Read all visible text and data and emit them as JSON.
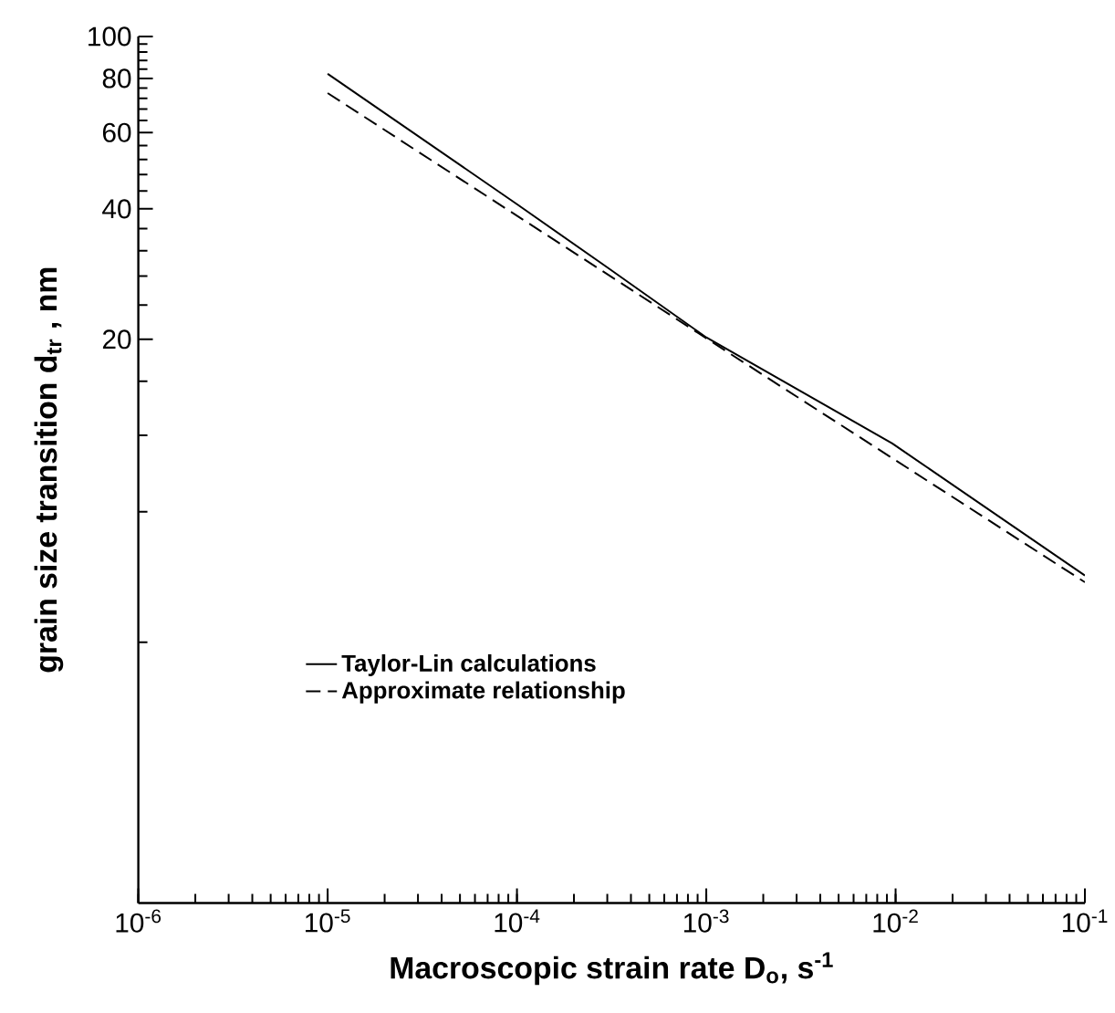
{
  "chart_data": {
    "type": "line",
    "xlabel": "Macroscopic strain rate D$_{o}$, s$^{-1}$",
    "ylabel": "grain size transition d$_{tr}$ , nm",
    "log": "xy",
    "xlim": [
      1e-06,
      0.1
    ],
    "ylim": [
      1,
      100
    ],
    "xticks": [
      {
        "value": 1e-06,
        "label": "10$^{-6}$"
      },
      {
        "value": 1e-05,
        "label": "10$^{-5}$"
      },
      {
        "value": 0.0001,
        "label": "10$^{-4}$"
      },
      {
        "value": 0.001,
        "label": "10$^{-3}$"
      },
      {
        "value": 0.01,
        "label": "10$^{-2}$"
      },
      {
        "value": 0.1,
        "label": "10$^{-1}$"
      }
    ],
    "yticks": [
      {
        "value": 4,
        "label": null
      },
      {
        "value": 8,
        "label": null
      },
      {
        "value": 12,
        "label": null
      },
      {
        "value": 16,
        "label": null
      },
      20,
      {
        "value": 24,
        "label": null
      },
      {
        "value": 28,
        "label": null
      },
      {
        "value": 32,
        "label": null
      },
      {
        "value": 36,
        "label": null
      },
      40,
      {
        "value": 44,
        "label": null
      },
      {
        "value": 48,
        "label": null
      },
      {
        "value": 52,
        "label": null
      },
      {
        "value": 56,
        "label": null
      },
      60,
      {
        "value": 64,
        "label": null
      },
      {
        "value": 68,
        "label": null
      },
      {
        "value": 72,
        "label": null
      },
      {
        "value": 76,
        "label": null
      },
      80,
      {
        "value": 84,
        "label": null
      },
      {
        "value": 88,
        "label": null
      },
      {
        "value": 92,
        "label": null
      },
      {
        "value": 96,
        "label": null
      },
      100
    ],
    "legend": "bottom left",
    "grid": false,
    "marker": "none",
    "series": [
      {
        "name": "Taylor-Lin calculations",
        "color": "#000000",
        "line_style": "solid",
        "x": [
          1e-05,
          0.0001,
          0.0003,
          0.001,
          0.0096,
          0.1
        ],
        "values": [
          82,
          41,
          29.3,
          20.2,
          11.5,
          5.7
        ]
      },
      {
        "name": "Approximate relationship",
        "color": "#000000",
        "line_style": "dashed",
        "x": [
          1e-05,
          0.001,
          0.1
        ],
        "values": [
          74,
          20.1,
          5.5
        ]
      }
    ]
  }
}
